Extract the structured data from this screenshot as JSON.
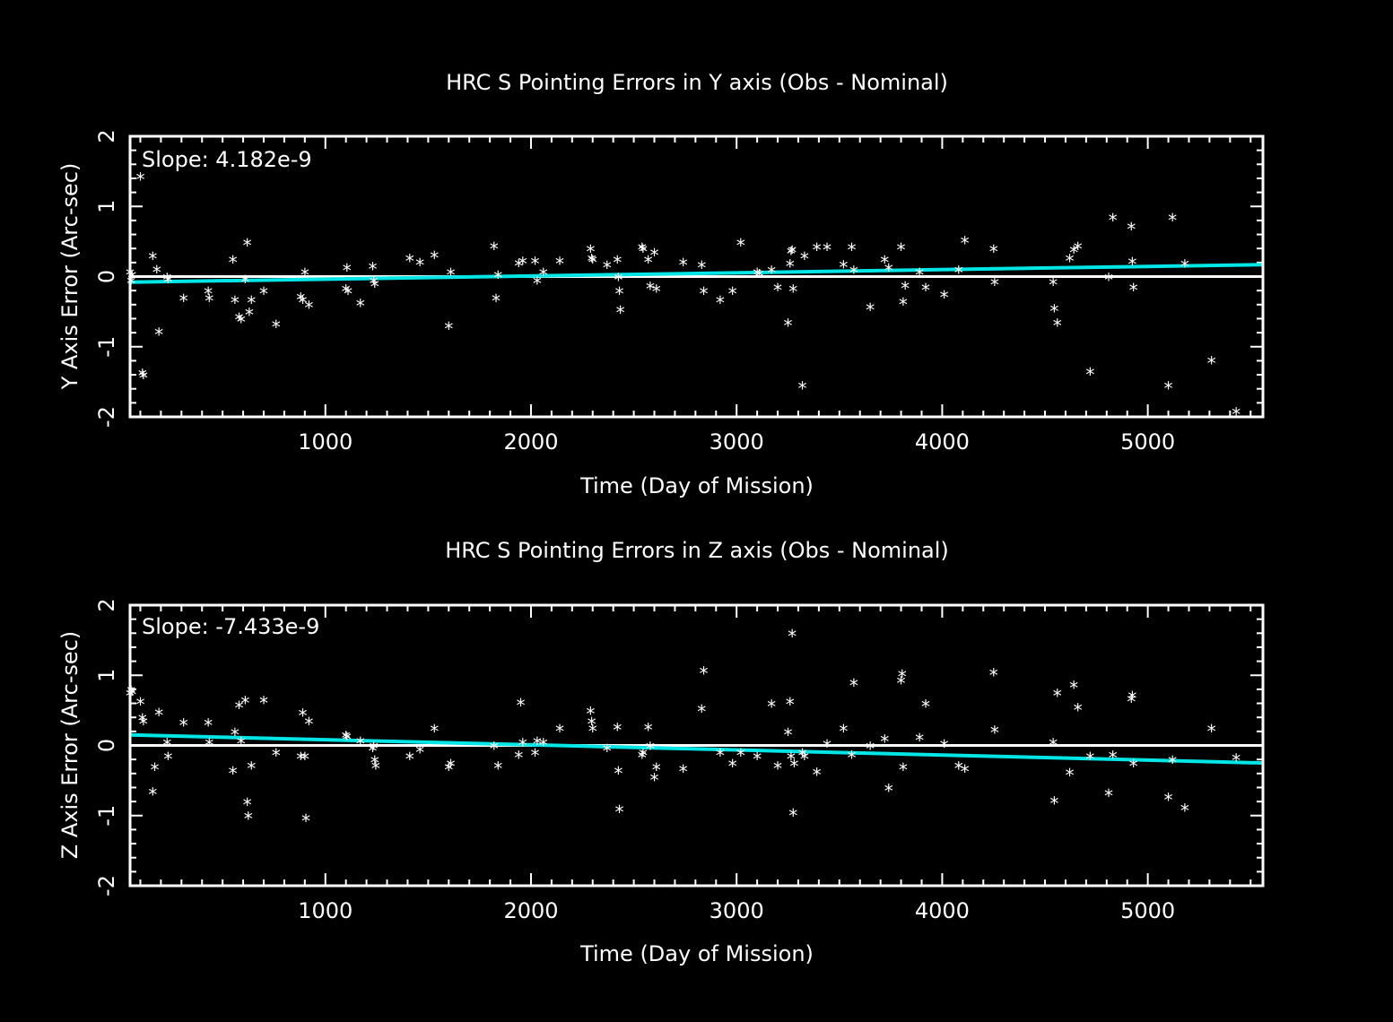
{
  "chart_data": [
    {
      "type": "scatter",
      "title": "HRC S Pointing Errors in Y axis (Obs - Nominal)",
      "xlabel": "Time (Day of Mission)",
      "ylabel": "Y Axis Error (Arc-sec)",
      "annotation": "Slope: 4.182e-9",
      "xlim": [
        50,
        5560
      ],
      "ylim": [
        -2,
        2
      ],
      "xticks": [
        1000,
        2000,
        3000,
        4000,
        5000
      ],
      "yticks": [
        -2,
        -1,
        0,
        1,
        2
      ],
      "zero_line": 0,
      "fit_line": {
        "x": [
          50,
          5560
        ],
        "y": [
          -0.08,
          0.17
        ],
        "color": "#00e5e5"
      },
      "marker": "*",
      "points": [
        [
          50,
          0.02
        ],
        [
          55,
          -0.1
        ],
        [
          60,
          -0.02
        ],
        [
          100,
          1.38
        ],
        [
          110,
          -1.42
        ],
        [
          115,
          -1.45
        ],
        [
          160,
          0.25
        ],
        [
          180,
          0.06
        ],
        [
          190,
          -0.83
        ],
        [
          230,
          -0.05
        ],
        [
          235,
          -0.08
        ],
        [
          310,
          -0.35
        ],
        [
          430,
          -0.25
        ],
        [
          435,
          -0.35
        ],
        [
          550,
          0.2
        ],
        [
          560,
          -0.38
        ],
        [
          580,
          -0.62
        ],
        [
          590,
          -0.65
        ],
        [
          610,
          -0.08
        ],
        [
          620,
          0.44
        ],
        [
          630,
          -0.55
        ],
        [
          640,
          -0.38
        ],
        [
          700,
          -0.25
        ],
        [
          760,
          -0.72
        ],
        [
          880,
          -0.33
        ],
        [
          890,
          -0.38
        ],
        [
          900,
          0.02
        ],
        [
          920,
          -0.45
        ],
        [
          1100,
          -0.22
        ],
        [
          1105,
          0.08
        ],
        [
          1110,
          -0.25
        ],
        [
          1170,
          -0.42
        ],
        [
          1230,
          0.1
        ],
        [
          1235,
          -0.1
        ],
        [
          1240,
          -0.15
        ],
        [
          1410,
          0.22
        ],
        [
          1460,
          0.16
        ],
        [
          1530,
          0.26
        ],
        [
          1600,
          -0.75
        ],
        [
          1610,
          0.02
        ],
        [
          1820,
          0.39
        ],
        [
          1830,
          -0.35
        ],
        [
          1840,
          -0.02
        ],
        [
          1940,
          0.15
        ],
        [
          1960,
          0.18
        ],
        [
          2020,
          0.18
        ],
        [
          2030,
          -0.1
        ],
        [
          2060,
          0.02
        ],
        [
          2140,
          0.18
        ],
        [
          2290,
          0.35
        ],
        [
          2295,
          0.22
        ],
        [
          2300,
          0.2
        ],
        [
          2370,
          0.12
        ],
        [
          2420,
          0.2
        ],
        [
          2425,
          -0.05
        ],
        [
          2430,
          -0.25
        ],
        [
          2435,
          -0.52
        ],
        [
          2540,
          0.38
        ],
        [
          2545,
          0.35
        ],
        [
          2570,
          0.2
        ],
        [
          2580,
          -0.18
        ],
        [
          2600,
          0.3
        ],
        [
          2610,
          -0.22
        ],
        [
          2740,
          0.16
        ],
        [
          2830,
          0.12
        ],
        [
          2840,
          -0.25
        ],
        [
          2920,
          -0.38
        ],
        [
          2980,
          -0.25
        ],
        [
          3020,
          0.44
        ],
        [
          3100,
          0.02
        ],
        [
          3110,
          0.0
        ],
        [
          3170,
          0.05
        ],
        [
          3200,
          -0.2
        ],
        [
          3250,
          -0.7
        ],
        [
          3260,
          0.14
        ],
        [
          3265,
          0.32
        ],
        [
          3270,
          0.34
        ],
        [
          3275,
          -0.22
        ],
        [
          3320,
          -1.6
        ],
        [
          3330,
          0.25
        ],
        [
          3390,
          0.38
        ],
        [
          3440,
          0.38
        ],
        [
          3520,
          0.13
        ],
        [
          3560,
          0.38
        ],
        [
          3570,
          0.05
        ],
        [
          3650,
          -0.48
        ],
        [
          3720,
          0.2
        ],
        [
          3740,
          0.08
        ],
        [
          3800,
          0.38
        ],
        [
          3810,
          -0.4
        ],
        [
          3820,
          -0.17
        ],
        [
          3890,
          0.02
        ],
        [
          3920,
          -0.2
        ],
        [
          4010,
          -0.3
        ],
        [
          4080,
          0.05
        ],
        [
          4110,
          0.47
        ],
        [
          4250,
          0.35
        ],
        [
          4255,
          -0.12
        ],
        [
          4540,
          -0.12
        ],
        [
          4545,
          -0.5
        ],
        [
          4560,
          -0.7
        ],
        [
          4620,
          0.22
        ],
        [
          4640,
          0.34
        ],
        [
          4660,
          0.39
        ],
        [
          4720,
          -1.4
        ],
        [
          4810,
          -0.05
        ],
        [
          4830,
          0.8
        ],
        [
          4920,
          0.67
        ],
        [
          4925,
          0.17
        ],
        [
          4930,
          -0.2
        ],
        [
          5100,
          -1.6
        ],
        [
          5120,
          0.8
        ],
        [
          5180,
          0.14
        ],
        [
          5310,
          -1.24
        ],
        [
          5430,
          -1.97
        ]
      ]
    },
    {
      "type": "scatter",
      "title": "HRC S Pointing Errors in  Z axis (Obs - Nominal)",
      "xlabel": "Time (Day of Mission)",
      "ylabel": "Z Axis Error (Arc-sec)",
      "annotation": "Slope: -7.433e-9",
      "xlim": [
        50,
        5560
      ],
      "ylim": [
        -2,
        2
      ],
      "xticks": [
        1000,
        2000,
        3000,
        4000,
        5000
      ],
      "yticks": [
        -2,
        -1,
        0,
        1,
        2
      ],
      "zero_line": 0,
      "fit_line": {
        "x": [
          50,
          5560
        ],
        "y": [
          0.15,
          -0.25
        ],
        "color": "#00e5e5"
      },
      "marker": "*",
      "points": [
        [
          50,
          0.7
        ],
        [
          55,
          0.75
        ],
        [
          60,
          0.72
        ],
        [
          100,
          0.58
        ],
        [
          110,
          0.35
        ],
        [
          115,
          0.3
        ],
        [
          160,
          -0.7
        ],
        [
          170,
          -0.35
        ],
        [
          190,
          0.43
        ],
        [
          230,
          0.0
        ],
        [
          235,
          -0.2
        ],
        [
          310,
          0.28
        ],
        [
          430,
          0.28
        ],
        [
          435,
          0.0
        ],
        [
          550,
          -0.4
        ],
        [
          560,
          0.15
        ],
        [
          580,
          0.53
        ],
        [
          590,
          0.02
        ],
        [
          610,
          0.6
        ],
        [
          620,
          -0.85
        ],
        [
          625,
          -1.05
        ],
        [
          640,
          -0.33
        ],
        [
          700,
          0.6
        ],
        [
          760,
          -0.15
        ],
        [
          880,
          -0.2
        ],
        [
          890,
          0.42
        ],
        [
          900,
          -0.2
        ],
        [
          905,
          -1.08
        ],
        [
          920,
          0.3
        ],
        [
          1100,
          0.1
        ],
        [
          1105,
          0.08
        ],
        [
          1170,
          0.02
        ],
        [
          1230,
          -0.08
        ],
        [
          1235,
          -0.05
        ],
        [
          1240,
          -0.25
        ],
        [
          1245,
          -0.33
        ],
        [
          1410,
          -0.2
        ],
        [
          1460,
          -0.1
        ],
        [
          1530,
          0.2
        ],
        [
          1600,
          -0.35
        ],
        [
          1610,
          -0.3
        ],
        [
          1820,
          -0.05
        ],
        [
          1840,
          -0.33
        ],
        [
          1940,
          -0.18
        ],
        [
          1950,
          0.57
        ],
        [
          1960,
          0.0
        ],
        [
          2020,
          -0.15
        ],
        [
          2030,
          0.02
        ],
        [
          2060,
          0.0
        ],
        [
          2140,
          0.2
        ],
        [
          2290,
          0.45
        ],
        [
          2295,
          0.3
        ],
        [
          2300,
          0.2
        ],
        [
          2370,
          -0.08
        ],
        [
          2420,
          0.22
        ],
        [
          2425,
          -0.4
        ],
        [
          2430,
          -0.95
        ],
        [
          2540,
          -0.18
        ],
        [
          2545,
          -0.15
        ],
        [
          2570,
          0.22
        ],
        [
          2580,
          -0.05
        ],
        [
          2600,
          -0.5
        ],
        [
          2610,
          -0.35
        ],
        [
          2740,
          -0.38
        ],
        [
          2830,
          0.48
        ],
        [
          2840,
          1.02
        ],
        [
          2920,
          -0.15
        ],
        [
          2980,
          -0.3
        ],
        [
          3020,
          -0.15
        ],
        [
          3100,
          -0.2
        ],
        [
          3170,
          0.55
        ],
        [
          3200,
          -0.33
        ],
        [
          3250,
          0.15
        ],
        [
          3260,
          0.58
        ],
        [
          3265,
          -0.2
        ],
        [
          3270,
          1.55
        ],
        [
          3275,
          -1.0
        ],
        [
          3280,
          -0.3
        ],
        [
          3320,
          -0.15
        ],
        [
          3330,
          -0.2
        ],
        [
          3390,
          -0.42
        ],
        [
          3440,
          -0.02
        ],
        [
          3520,
          0.2
        ],
        [
          3560,
          -0.18
        ],
        [
          3570,
          0.85
        ],
        [
          3650,
          -0.05
        ],
        [
          3720,
          0.05
        ],
        [
          3740,
          -0.65
        ],
        [
          3800,
          0.88
        ],
        [
          3805,
          0.98
        ],
        [
          3810,
          -0.35
        ],
        [
          3890,
          0.07
        ],
        [
          3920,
          0.55
        ],
        [
          4010,
          -0.02
        ],
        [
          4080,
          -0.33
        ],
        [
          4110,
          -0.38
        ],
        [
          4250,
          1.0
        ],
        [
          4255,
          0.18
        ],
        [
          4540,
          0.0
        ],
        [
          4545,
          -0.83
        ],
        [
          4560,
          0.7
        ],
        [
          4620,
          -0.43
        ],
        [
          4640,
          0.82
        ],
        [
          4660,
          0.5
        ],
        [
          4720,
          -0.2
        ],
        [
          4810,
          -0.72
        ],
        [
          4830,
          -0.18
        ],
        [
          4920,
          0.62
        ],
        [
          4925,
          0.67
        ],
        [
          4930,
          -0.3
        ],
        [
          5100,
          -0.78
        ],
        [
          5120,
          -0.25
        ],
        [
          5180,
          -0.93
        ],
        [
          5310,
          0.2
        ],
        [
          5430,
          -0.22
        ]
      ]
    }
  ]
}
